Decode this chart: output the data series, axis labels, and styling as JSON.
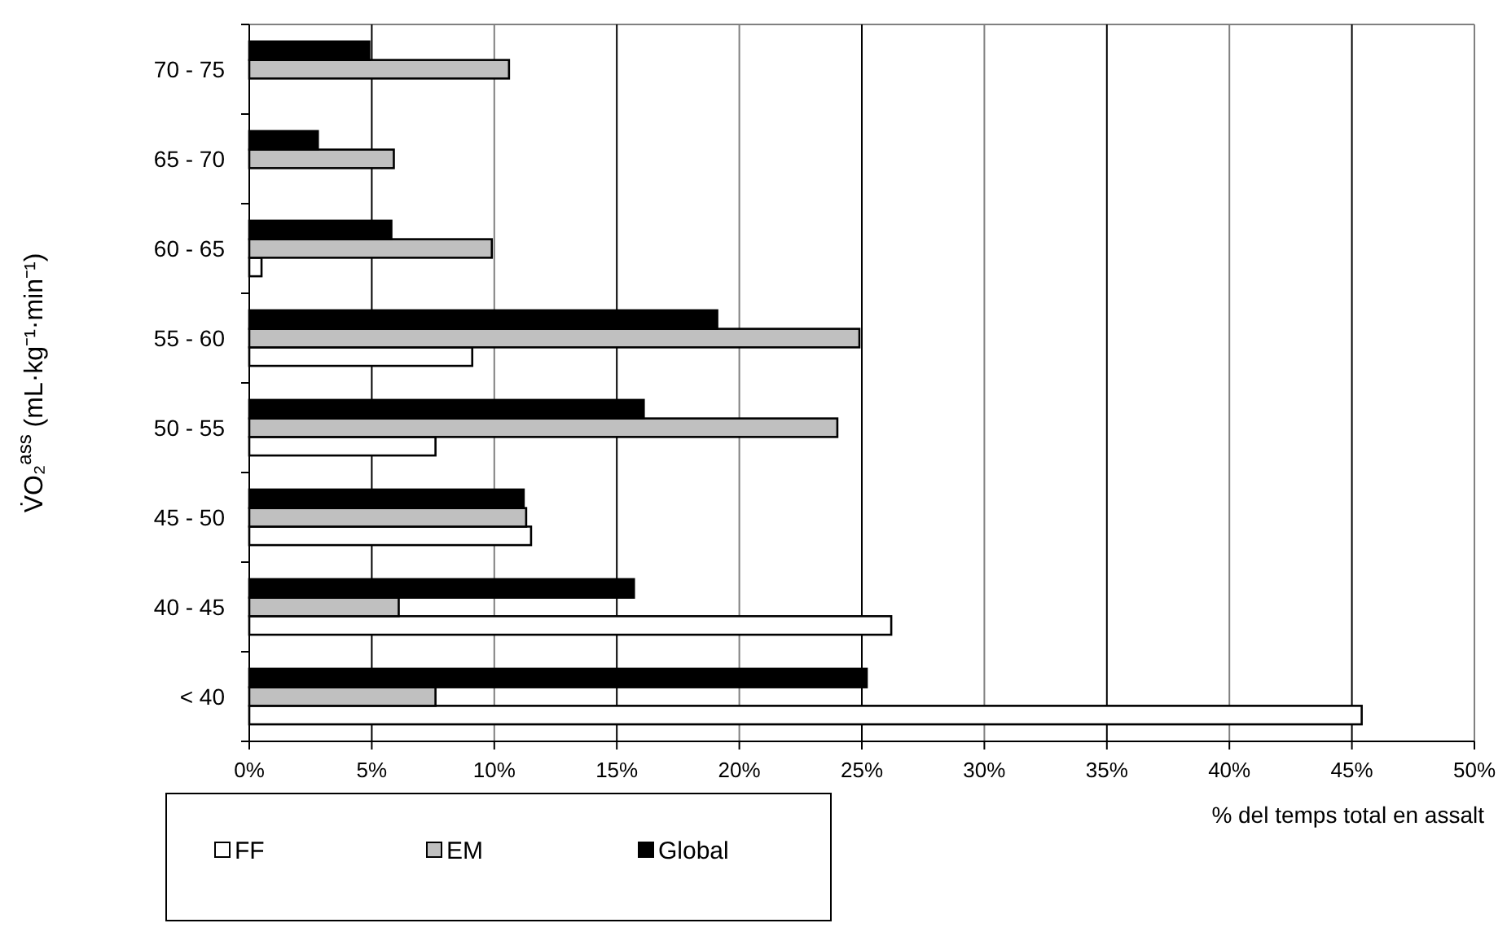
{
  "chart_data": {
    "type": "bar",
    "orientation": "horizontal",
    "xlabel": "% del temps total en assalt",
    "ylabel": "V̇O₂$^{ass}$ (mL·kg⁻¹·min⁻¹)",
    "categories": [
      "70 - 75",
      "65 - 70",
      "60 - 65",
      "55 - 60",
      "50 - 55",
      "45 - 50",
      "40 - 45",
      "< 40"
    ],
    "series": [
      {
        "name": "FF",
        "color": "#ffffff",
        "values": [
          0,
          0,
          0.5,
          9.1,
          7.6,
          11.5,
          26.2,
          45.4
        ]
      },
      {
        "name": "EM",
        "color": "#c0c0c0",
        "values": [
          10.6,
          5.9,
          9.9,
          24.9,
          24.0,
          11.3,
          6.1,
          7.6
        ]
      },
      {
        "name": "Global",
        "color": "#000000",
        "values": [
          4.9,
          2.8,
          5.8,
          19.1,
          16.1,
          11.2,
          15.7,
          25.2
        ]
      }
    ],
    "xlim": [
      0,
      50
    ],
    "xticks": [
      {
        "value": 0,
        "label": "0%"
      },
      {
        "value": 5,
        "label": "5%"
      },
      {
        "value": 10,
        "label": "10%"
      },
      {
        "value": 15,
        "label": "15%"
      },
      {
        "value": 20,
        "label": "20%"
      },
      {
        "value": 25,
        "label": "25%"
      },
      {
        "value": 30,
        "label": "30%"
      },
      {
        "value": 35,
        "label": "35%"
      },
      {
        "value": 40,
        "label": "40%"
      },
      {
        "value": 45,
        "label": "45%"
      },
      {
        "value": 50,
        "label": "50%"
      }
    ],
    "grid": "x",
    "legend": "bottom left"
  }
}
